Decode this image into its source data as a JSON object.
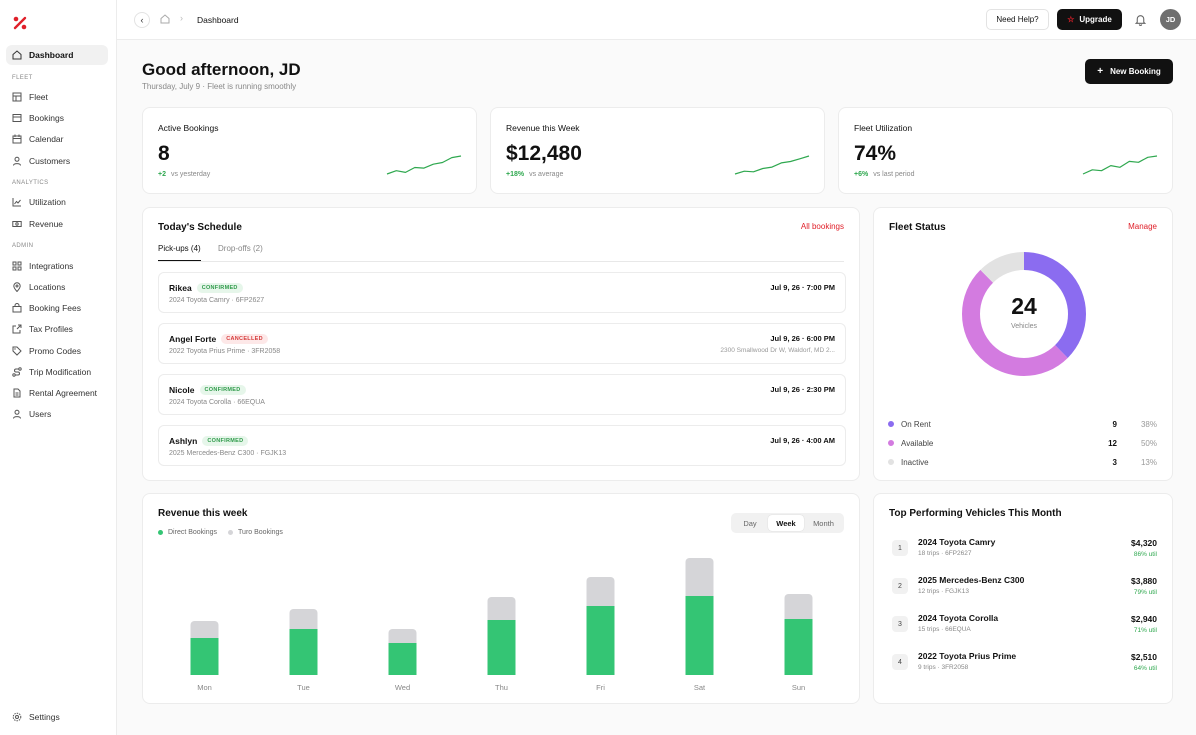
{
  "nav": {
    "dashboard": "Dashboard",
    "sec_fleet": "FLEET",
    "fleet": "Fleet",
    "bookings": "Bookings",
    "calendar": "Calendar",
    "customers": "Customers",
    "sec_analytics": "ANALYTICS",
    "utilization": "Utilization",
    "revenue": "Revenue",
    "sec_admin": "ADMIN",
    "integrations": "Integrations",
    "locations": "Locations",
    "booking_fees": "Booking Fees",
    "tax_profiles": "Tax Profiles",
    "promo_codes": "Promo Codes",
    "trip_modification": "Trip Modification",
    "rental_agreement": "Rental Agreement",
    "users": "Users",
    "settings": "Settings"
  },
  "topbar": {
    "breadcrumb": "Dashboard",
    "help": "Need Help?",
    "upgrade": "Upgrade",
    "avatar": "JD"
  },
  "header": {
    "greeting": "Good afternoon, JD",
    "subtitle": "Thursday, July 9 · Fleet is running smoothly",
    "new_booking": "New Booking"
  },
  "kpis": [
    {
      "label": "Active Bookings",
      "value": "8",
      "delta": "+2",
      "delta_note": "vs yesterday",
      "spark": [
        4,
        5,
        4.5,
        6,
        5.8,
        7,
        7.5,
        9,
        9.5
      ]
    },
    {
      "label": "Revenue this Week",
      "value": "$12,480",
      "delta": "+18%",
      "delta_note": "vs average",
      "spark": [
        3,
        4,
        3.8,
        5,
        5.5,
        7,
        7.5,
        8.5,
        9.5
      ]
    },
    {
      "label": "Fleet Utilization",
      "value": "74%",
      "delta": "+6%",
      "delta_note": "vs last period",
      "spark": [
        4,
        5,
        4.8,
        6,
        5.6,
        7,
        6.8,
        8,
        8.3
      ]
    }
  ],
  "schedule": {
    "title": "Today's Schedule",
    "all_link": "All bookings",
    "tab_pickups": "Pick-ups (4)",
    "tab_dropoffs": "Drop-offs (2)",
    "rows": [
      {
        "name": "Rikea",
        "status": "CONFIRMED",
        "car": "2024 Toyota Camry · 6FP2627",
        "time": "Jul 9, 26 · 7:00 PM",
        "address": ""
      },
      {
        "name": "Angel Forte",
        "status": "CANCELLED",
        "car": "2022 Toyota Prius Prime · 3FR2058",
        "time": "Jul 9, 26 · 6:00 PM",
        "address": "2300 Smallwood Dr W, Waldorf, MD 2..."
      },
      {
        "name": "Nicole",
        "status": "CONFIRMED",
        "car": "2024 Toyota Corolla · 66EQUA",
        "time": "Jul 9, 26 · 2:30 PM",
        "address": ""
      },
      {
        "name": "Ashlyn",
        "status": "CONFIRMED",
        "car": "2025 Mercedes-Benz C300 · FGJK13",
        "time": "Jul 9, 26 · 4:00 AM",
        "address": ""
      }
    ]
  },
  "fleet_status": {
    "title": "Fleet Status",
    "manage": "Manage",
    "total": "24",
    "total_label": "Vehicles",
    "items": [
      {
        "label": "On Rent",
        "count": "9",
        "pct": "38%",
        "color": "#8b6cf0",
        "value": 9
      },
      {
        "label": "Available",
        "count": "12",
        "pct": "50%",
        "color": "#d37be0",
        "value": 12
      },
      {
        "label": "Inactive",
        "count": "3",
        "pct": "13%",
        "color": "#e2e2e2",
        "value": 3
      }
    ]
  },
  "revenue_week": {
    "title": "Revenue this week",
    "legend_direct": "Direct Bookings",
    "legend_turo": "Turo Bookings",
    "seg_day": "Day",
    "seg_week": "Week",
    "seg_month": "Month",
    "colors": {
      "direct": "#34c574",
      "turo": "#d5d5d8"
    }
  },
  "chart_data": {
    "type": "bar",
    "categories": [
      "Mon",
      "Tue",
      "Wed",
      "Thu",
      "Fri",
      "Sat",
      "Sun"
    ],
    "series": [
      {
        "name": "Direct Bookings",
        "values": [
          37,
          46,
          32,
          55,
          69,
          79,
          56
        ]
      },
      {
        "name": "Turo Bookings",
        "values": [
          17,
          20,
          14,
          23,
          29,
          38,
          25
        ]
      }
    ],
    "stacked": true,
    "ylim": [
      0,
      125
    ],
    "grid": false,
    "legend": "top-left"
  },
  "top_vehicles": {
    "title": "Top Performing Vehicles This Month",
    "rows": [
      {
        "rank": "1",
        "name": "2024 Toyota Camry",
        "sub": "18 trips · 6FP2627",
        "amount": "$4,320",
        "util": "86% util"
      },
      {
        "rank": "2",
        "name": "2025 Mercedes-Benz C300",
        "sub": "12 trips · FGJK13",
        "amount": "$3,880",
        "util": "79% util"
      },
      {
        "rank": "3",
        "name": "2024 Toyota Corolla",
        "sub": "15 trips · 66EQUA",
        "amount": "$2,940",
        "util": "71% util"
      },
      {
        "rank": "4",
        "name": "2022 Toyota Prius Prime",
        "sub": "9 trips · 3FR2058",
        "amount": "$2,510",
        "util": "64% util"
      }
    ]
  }
}
